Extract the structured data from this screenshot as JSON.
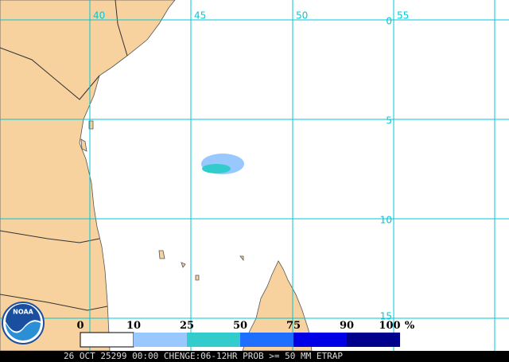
{
  "map": {
    "longitude_labels": [
      "40",
      "45",
      "50",
      "55"
    ],
    "latitude_labels": [
      "0",
      "5",
      "10",
      "15"
    ],
    "logo_text": "NOAA",
    "legend": {
      "labels": [
        "0",
        "10",
        "25",
        "50",
        "75",
        "90",
        "100"
      ],
      "unit": "%"
    },
    "footer": "26 OCT 25299 00:00 CHENGE:06-12HR PROB >= 50 MM ETRAP"
  }
}
